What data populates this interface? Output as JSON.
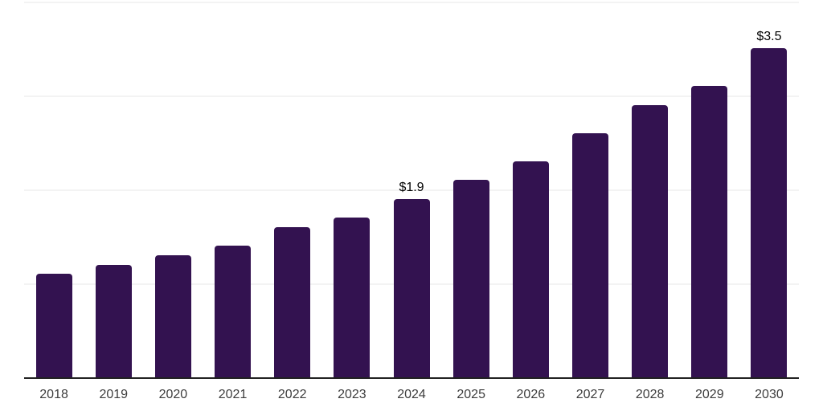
{
  "chart_data": {
    "type": "bar",
    "title": "",
    "xlabel": "",
    "ylabel": "",
    "categories": [
      "2018",
      "2019",
      "2020",
      "2021",
      "2022",
      "2023",
      "2024",
      "2025",
      "2026",
      "2027",
      "2028",
      "2029",
      "2030"
    ],
    "values": [
      1.1,
      1.2,
      1.3,
      1.4,
      1.6,
      1.7,
      1.9,
      2.1,
      2.3,
      2.6,
      2.9,
      3.1,
      3.5
    ],
    "data_labels": [
      "",
      "",
      "",
      "",
      "",
      "",
      "$1.9",
      "",
      "",
      "",
      "",
      "",
      "$3.5"
    ],
    "ylim": [
      0,
      4
    ],
    "gridline_interval": 1.0,
    "grid": "horizontal",
    "legend": "none",
    "colors": {
      "bar": "#331250",
      "gridline": "#f3f3f3",
      "axis_line": "#212121",
      "tick_label": "#3d3d3d",
      "data_label": "#000000",
      "background": "#ffffff"
    }
  }
}
